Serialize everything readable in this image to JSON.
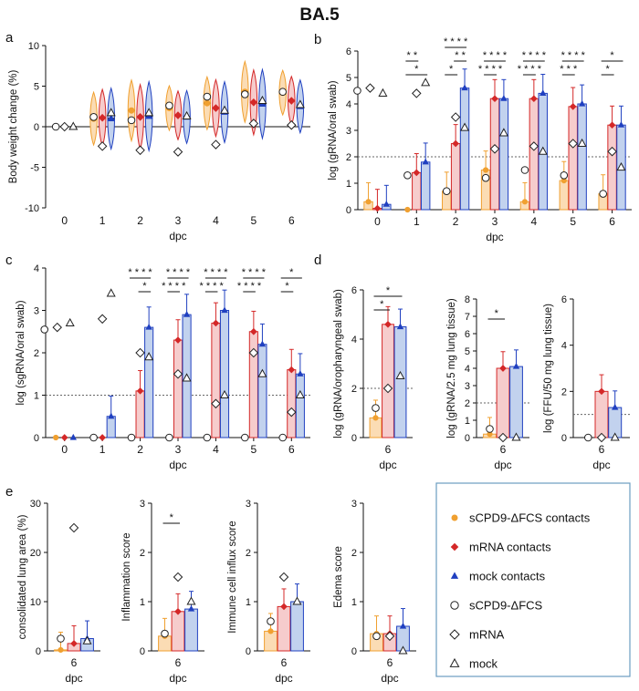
{
  "figure": {
    "title": "BA.5"
  },
  "legend": {
    "entries": [
      {
        "label": "sCPD9-ΔFCS contacts",
        "marker": "circle-filled",
        "color": "#f0a030"
      },
      {
        "label": "mRNA contacts",
        "marker": "diamond-filled",
        "color": "#d42828"
      },
      {
        "label": "mock contacts",
        "marker": "triangle-filled",
        "color": "#2040c0"
      },
      {
        "label": "sCPD9-ΔFCS",
        "marker": "circle-open",
        "color": "#ffffff"
      },
      {
        "label": "mRNA",
        "marker": "diamond-open",
        "color": "#ffffff"
      },
      {
        "label": "mock",
        "marker": "triangle-open",
        "color": "#ffffff"
      }
    ],
    "border_color": "#6a9cc0"
  },
  "colors": {
    "scpd9": "#f0a030",
    "scpd9_fill": "#fbdcb4",
    "mrna": "#d42828",
    "mrna_fill": "#f6cccc",
    "mock": "#2040c0",
    "mock_fill": "#c2d2ee"
  },
  "chart_data": [
    {
      "panel": "a",
      "type": "violin",
      "ylabel": "Body weight change (%)",
      "xlabel": "dpc",
      "categories": [
        "0",
        "1",
        "2",
        "3",
        "4",
        "5",
        "6"
      ],
      "ylim": [
        -10,
        10
      ],
      "yticks": [
        -10,
        -5,
        0,
        5,
        10
      ],
      "series": [
        {
          "name": "sCPD9-ΔFCS contacts",
          "values": [
            0,
            1.0,
            2.0,
            2.3,
            2.9,
            4.3,
            4.2
          ]
        },
        {
          "name": "mRNA contacts",
          "values": [
            0,
            1.1,
            1.2,
            1.4,
            2.3,
            3.0,
            3.2
          ]
        },
        {
          "name": "mock contacts",
          "values": [
            0,
            1.0,
            1.3,
            1.2,
            1.8,
            2.8,
            2.5
          ]
        }
      ],
      "controls": [
        {
          "name": "sCPD9-ΔFCS",
          "values": [
            0,
            1.2,
            0.8,
            2.6,
            3.7,
            4.0,
            4.3
          ]
        },
        {
          "name": "mRNA",
          "values": [
            0,
            -2.4,
            -2.9,
            -3.1,
            -2.2,
            0.4,
            0.2
          ]
        },
        {
          "name": "mock",
          "values": [
            0,
            1.7,
            1.7,
            1.3,
            2.0,
            3.2,
            2.7
          ]
        }
      ]
    },
    {
      "panel": "b",
      "type": "bar",
      "ylabel": "log (gRNA/oral swab)",
      "xlabel": "dpc",
      "categories": [
        "0",
        "1",
        "2",
        "3",
        "4",
        "5",
        "6"
      ],
      "ylim": [
        0,
        6
      ],
      "yticks": [
        0,
        1,
        2,
        3,
        4,
        5,
        6
      ],
      "threshold": 2,
      "series": [
        {
          "name": "sCPD9-ΔFCS contacts",
          "values": [
            0.3,
            0,
            0.7,
            1.5,
            0.3,
            1.1,
            0.6
          ]
        },
        {
          "name": "mRNA contacts",
          "values": [
            0.05,
            1.4,
            2.5,
            4.2,
            4.2,
            3.9,
            3.2
          ]
        },
        {
          "name": "mock contacts",
          "values": [
            0.2,
            1.8,
            4.6,
            4.2,
            4.4,
            4.0,
            3.2
          ]
        }
      ],
      "controls": [
        {
          "name": "sCPD9-ΔFCS",
          "values": [
            4.5,
            1.3,
            0.7,
            1.2,
            1.5,
            1.3,
            0.6
          ]
        },
        {
          "name": "mRNA",
          "values": [
            4.6,
            4.4,
            3.5,
            2.3,
            2.4,
            2.5,
            2.2
          ]
        },
        {
          "name": "mock",
          "values": [
            4.4,
            4.8,
            3.1,
            2.9,
            2.2,
            2.5,
            1.6
          ]
        }
      ],
      "significance": [
        {
          "label": "* *",
          "from": 0,
          "to": 1,
          "group": 1,
          "level": 1
        },
        {
          "label": "*",
          "from": 0,
          "to": 2,
          "group": 1,
          "level": 0
        },
        {
          "label": "* * * *",
          "from": 0,
          "to": 2,
          "group": 2,
          "level": 2
        },
        {
          "label": "* *",
          "from": 1,
          "to": 2,
          "group": 2,
          "level": 1
        },
        {
          "label": "*",
          "from": 0,
          "to": 1,
          "group": 2,
          "level": 0
        },
        {
          "label": "* * * *",
          "from": 0,
          "to": 2,
          "group": 3,
          "level": 1
        },
        {
          "label": "* * * *",
          "from": 0,
          "to": 1,
          "group": 3,
          "level": 0
        },
        {
          "label": "* * * *",
          "from": 0,
          "to": 2,
          "group": 4,
          "level": 1
        },
        {
          "label": "* * * *",
          "from": 0,
          "to": 1,
          "group": 4,
          "level": 0
        },
        {
          "label": "* * * *",
          "from": 0,
          "to": 2,
          "group": 5,
          "level": 1
        },
        {
          "label": "* * *",
          "from": 0,
          "to": 1,
          "group": 5,
          "level": 0
        },
        {
          "label": "*",
          "from": 0,
          "to": 2,
          "group": 6,
          "level": 1
        },
        {
          "label": "*",
          "from": 0,
          "to": 1,
          "group": 6,
          "level": 0
        }
      ]
    },
    {
      "panel": "c",
      "type": "bar",
      "ylabel": "log (sgRNA/oral swab)",
      "xlabel": "dpc",
      "categories": [
        "0",
        "1",
        "2",
        "3",
        "4",
        "5",
        "6"
      ],
      "ylim": [
        0,
        4
      ],
      "yticks": [
        0,
        1,
        2,
        3,
        4
      ],
      "threshold": 1,
      "series": [
        {
          "name": "sCPD9-ΔFCS contacts",
          "values": [
            0,
            0,
            0,
            0,
            0,
            0,
            0
          ]
        },
        {
          "name": "mRNA contacts",
          "values": [
            0,
            0,
            1.1,
            2.3,
            2.7,
            2.5,
            1.6
          ]
        },
        {
          "name": "mock contacts",
          "values": [
            0,
            0.5,
            2.6,
            2.9,
            3.0,
            2.2,
            1.5
          ]
        }
      ],
      "controls": [
        {
          "name": "sCPD9-ΔFCS",
          "values": [
            2.55,
            0,
            0,
            0,
            0,
            0,
            0
          ]
        },
        {
          "name": "mRNA",
          "values": [
            2.6,
            2.8,
            2.0,
            1.5,
            0.8,
            2.0,
            0.6
          ]
        },
        {
          "name": "mock",
          "values": [
            2.7,
            3.4,
            1.9,
            1.4,
            1.0,
            1.5,
            1.0
          ]
        }
      ],
      "significance": [
        {
          "label": "* * * *",
          "from": 0,
          "to": 2,
          "group": 2,
          "level": 1
        },
        {
          "label": "*",
          "from": 1,
          "to": 2,
          "group": 2,
          "level": 0
        },
        {
          "label": "* * * *",
          "from": 0,
          "to": 2,
          "group": 3,
          "level": 1
        },
        {
          "label": "* * * *",
          "from": 0,
          "to": 1,
          "group": 3,
          "level": 0
        },
        {
          "label": "* * * *",
          "from": 0,
          "to": 2,
          "group": 4,
          "level": 1
        },
        {
          "label": "* * * *",
          "from": 0,
          "to": 1,
          "group": 4,
          "level": 0
        },
        {
          "label": "* * * *",
          "from": 0,
          "to": 2,
          "group": 5,
          "level": 1
        },
        {
          "label": "* * * *",
          "from": 0,
          "to": 1,
          "group": 5,
          "level": 0
        },
        {
          "label": "*",
          "from": 0,
          "to": 2,
          "group": 6,
          "level": 1
        },
        {
          "label": "*",
          "from": 0,
          "to": 1,
          "group": 6,
          "level": 0
        }
      ]
    },
    {
      "panel": "d",
      "type": "bar",
      "subplot": 1,
      "ylabel": "log (gRNA/oropharyngeal swab)",
      "xlabel": "dpc",
      "categories": [
        "6"
      ],
      "ylim": [
        0,
        6
      ],
      "yticks": [
        0,
        2,
        4,
        6
      ],
      "threshold": 2,
      "series": [
        {
          "name": "sCPD9-ΔFCS contacts",
          "values": [
            0.8
          ]
        },
        {
          "name": "mRNA contacts",
          "values": [
            4.6
          ]
        },
        {
          "name": "mock contacts",
          "values": [
            4.5
          ]
        }
      ],
      "controls": [
        {
          "name": "sCPD9-ΔFCS",
          "values": [
            1.2
          ]
        },
        {
          "name": "mRNA",
          "values": [
            2.0
          ]
        },
        {
          "name": "mock",
          "values": [
            2.5
          ]
        }
      ],
      "significance": [
        {
          "label": "*",
          "from": 0,
          "to": 2,
          "group": 0,
          "level": 1
        },
        {
          "label": "*",
          "from": 0,
          "to": 1,
          "group": 0,
          "level": 0
        }
      ]
    },
    {
      "panel": "d",
      "type": "bar",
      "subplot": 2,
      "ylabel": "log (gRNA/2.5 mg lung tissue)",
      "xlabel": "dpc",
      "categories": [
        "6"
      ],
      "ylim": [
        0,
        8
      ],
      "yticks": [
        0,
        1,
        2,
        3,
        4,
        5,
        6,
        7,
        8
      ],
      "threshold": 2,
      "series": [
        {
          "name": "sCPD9-ΔFCS contacts",
          "values": [
            0.2
          ]
        },
        {
          "name": "mRNA contacts",
          "values": [
            4.0
          ]
        },
        {
          "name": "mock contacts",
          "values": [
            4.1
          ]
        }
      ],
      "controls": [
        {
          "name": "sCPD9-ΔFCS",
          "values": [
            0.5
          ]
        },
        {
          "name": "mRNA",
          "values": [
            0
          ]
        },
        {
          "name": "mock",
          "values": [
            0
          ]
        }
      ],
      "significance": [
        {
          "label": "*",
          "from": 0,
          "to": 1,
          "group": 0,
          "level": 0
        }
      ]
    },
    {
      "panel": "d",
      "type": "bar",
      "subplot": 3,
      "ylabel": "log (FFU/50 mg lung tissue)",
      "xlabel": "dpc",
      "categories": [
        "6"
      ],
      "ylim": [
        0,
        6
      ],
      "yticks": [
        0,
        2,
        4,
        6
      ],
      "threshold": 1,
      "series": [
        {
          "name": "sCPD9-ΔFCS contacts",
          "values": [
            0
          ]
        },
        {
          "name": "mRNA contacts",
          "values": [
            2.0
          ]
        },
        {
          "name": "mock contacts",
          "values": [
            1.3
          ]
        }
      ],
      "controls": [
        {
          "name": "sCPD9-ΔFCS",
          "values": [
            0
          ]
        },
        {
          "name": "mRNA",
          "values": [
            0
          ]
        },
        {
          "name": "mock",
          "values": [
            0
          ]
        }
      ],
      "significance": []
    },
    {
      "panel": "e",
      "type": "bar",
      "subplot": 1,
      "ylabel": "consolidated lung area (%)",
      "xlabel": "dpc",
      "categories": [
        "6"
      ],
      "ylim": [
        0,
        30
      ],
      "yticks": [
        0,
        10,
        20,
        30
      ],
      "series": [
        {
          "name": "sCPD9-ΔFCS contacts",
          "values": [
            0.2
          ]
        },
        {
          "name": "mRNA contacts",
          "values": [
            1.5
          ]
        },
        {
          "name": "mock contacts",
          "values": [
            2.5
          ]
        }
      ],
      "controls": [
        {
          "name": "sCPD9-ΔFCS",
          "values": [
            2.5
          ]
        },
        {
          "name": "mRNA",
          "values": [
            25
          ]
        },
        {
          "name": "mock",
          "values": [
            2.0
          ]
        }
      ],
      "significance": []
    },
    {
      "panel": "e",
      "type": "bar",
      "subplot": 2,
      "ylabel": "Inflammation score",
      "xlabel": "dpc",
      "categories": [
        "6"
      ],
      "ylim": [
        0,
        3
      ],
      "yticks": [
        0,
        1,
        2,
        3
      ],
      "series": [
        {
          "name": "sCPD9-ΔFCS contacts",
          "values": [
            0.3
          ]
        },
        {
          "name": "mRNA contacts",
          "values": [
            0.8
          ]
        },
        {
          "name": "mock contacts",
          "values": [
            0.85
          ]
        }
      ],
      "controls": [
        {
          "name": "sCPD9-ΔFCS",
          "values": [
            0.35
          ]
        },
        {
          "name": "mRNA",
          "values": [
            1.5
          ]
        },
        {
          "name": "mock",
          "values": [
            1.0
          ]
        }
      ],
      "significance": [
        {
          "label": "*",
          "from": 0,
          "to": 1,
          "group": 0,
          "level": 0
        }
      ]
    },
    {
      "panel": "e",
      "type": "bar",
      "subplot": 3,
      "ylabel": "Immune cell influx score",
      "xlabel": "dpc",
      "categories": [
        "6"
      ],
      "ylim": [
        0,
        3
      ],
      "yticks": [
        0,
        1,
        2,
        3
      ],
      "series": [
        {
          "name": "sCPD9-ΔFCS contacts",
          "values": [
            0.4
          ]
        },
        {
          "name": "mRNA contacts",
          "values": [
            0.9
          ]
        },
        {
          "name": "mock contacts",
          "values": [
            1.0
          ]
        }
      ],
      "controls": [
        {
          "name": "sCPD9-ΔFCS",
          "values": [
            0.6
          ]
        },
        {
          "name": "mRNA",
          "values": [
            1.5
          ]
        },
        {
          "name": "mock",
          "values": [
            1.0
          ]
        }
      ],
      "significance": []
    },
    {
      "panel": "e",
      "type": "bar",
      "subplot": 4,
      "ylabel": "Edema score",
      "xlabel": "dpc",
      "categories": [
        "6"
      ],
      "ylim": [
        0,
        3
      ],
      "yticks": [
        0,
        1,
        2,
        3
      ],
      "series": [
        {
          "name": "sCPD9-ΔFCS contacts",
          "values": [
            0.35
          ]
        },
        {
          "name": "mRNA contacts",
          "values": [
            0.35
          ]
        },
        {
          "name": "mock contacts",
          "values": [
            0.5
          ]
        }
      ],
      "controls": [
        {
          "name": "sCPD9-ΔFCS",
          "values": [
            0.3
          ]
        },
        {
          "name": "mRNA",
          "values": [
            0.3
          ]
        },
        {
          "name": "mock",
          "values": [
            0
          ]
        }
      ],
      "significance": []
    }
  ]
}
